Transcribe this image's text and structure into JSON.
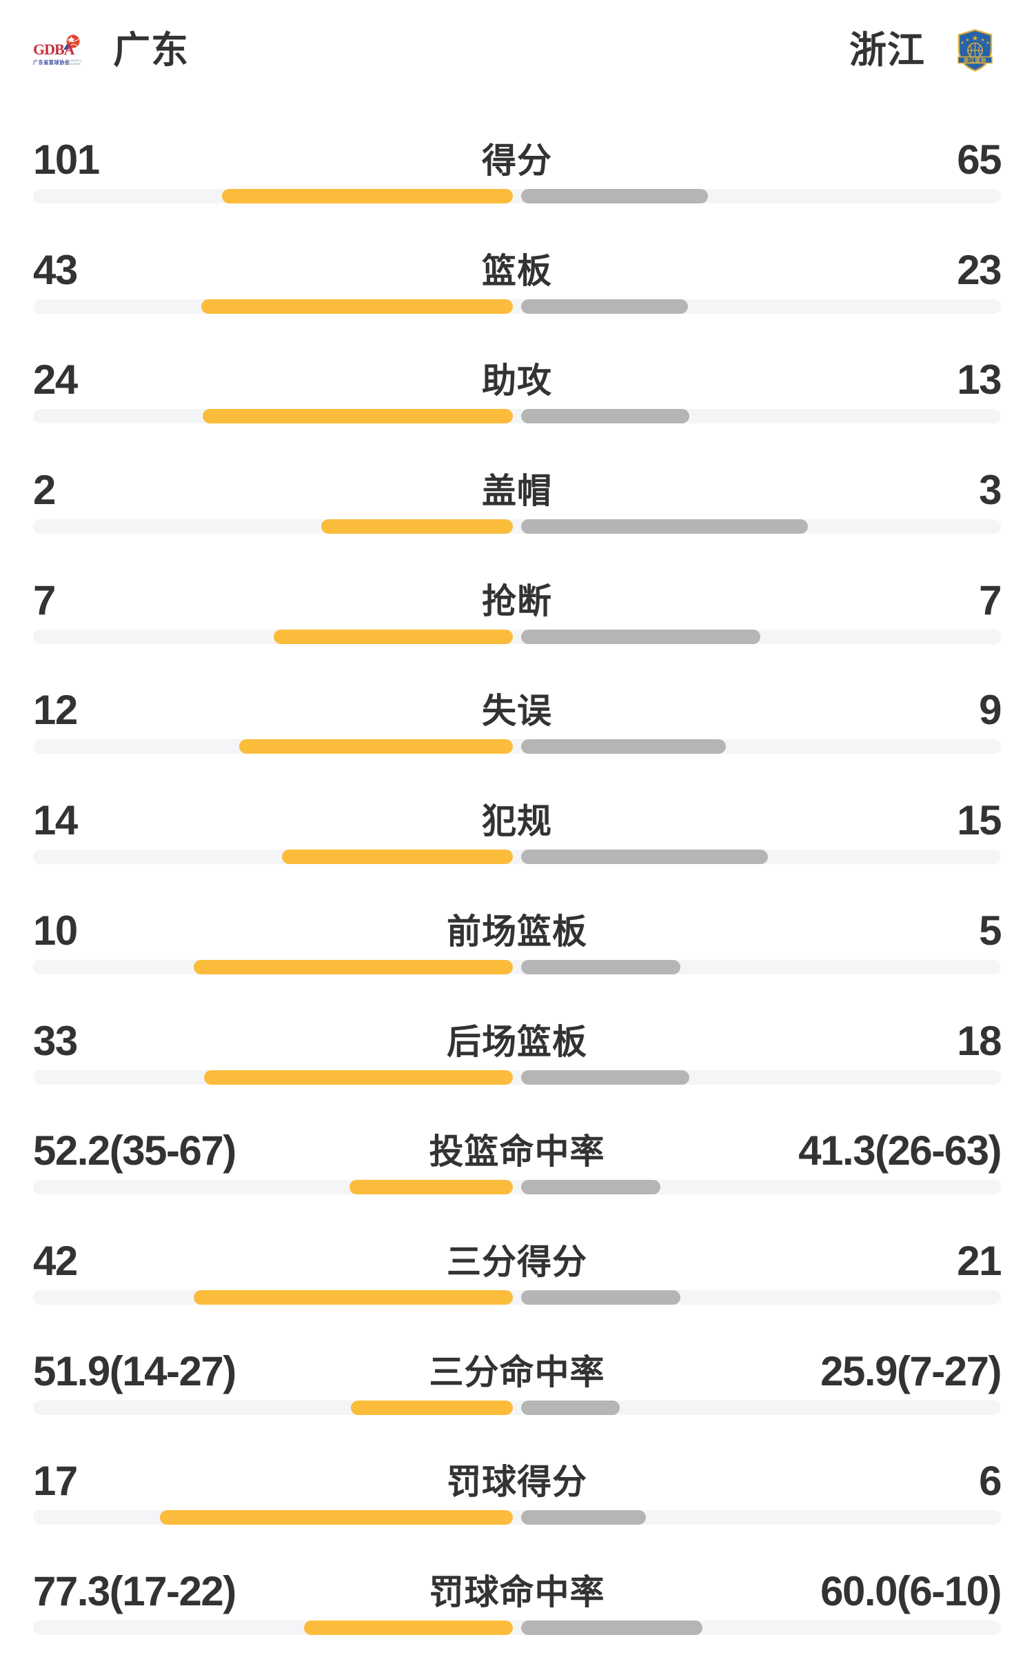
{
  "header": {
    "home": {
      "name": "广东"
    },
    "away": {
      "name": "浙江"
    },
    "home_logo": {
      "text": "GDBA",
      "subtext": "广东省篮球协会",
      "tiny_line1": "Guangdong",
      "tiny_line2": "Basketball"
    },
    "away_logo": {
      "banner_text": "浙江篮协"
    }
  },
  "colors": {
    "home_bar": "#FBBC3B",
    "away_bar": "#B5B5B5",
    "track": "#F4F5F7",
    "text": "#333333",
    "gdba_red": "#C5303E",
    "gdba_blue": "#3B4D9E",
    "zj_shield_blue": "#2763A6",
    "zj_gold": "#DFAE3F"
  },
  "chart_data": {
    "type": "bar",
    "subtype": "diverging-comparison",
    "legend": [
      "广东",
      "浙江"
    ],
    "legend_position": "top",
    "grid": false,
    "bar_scale_note": "bar widths are percent of half-track, growing outward from center",
    "rows": [
      {
        "label": "得分",
        "home": "101",
        "away": "65",
        "home_bar_pct": 60.7,
        "away_bar_pct": 39.0
      },
      {
        "label": "篮板",
        "home": "43",
        "away": "23",
        "home_bar_pct": 65.0,
        "away_bar_pct": 34.8
      },
      {
        "label": "助攻",
        "home": "24",
        "away": "13",
        "home_bar_pct": 64.7,
        "away_bar_pct": 35.0
      },
      {
        "label": "盖帽",
        "home": "2",
        "away": "3",
        "home_bar_pct": 39.9,
        "away_bar_pct": 59.8
      },
      {
        "label": "抢断",
        "home": "7",
        "away": "7",
        "home_bar_pct": 49.8,
        "away_bar_pct": 49.8
      },
      {
        "label": "失误",
        "home": "12",
        "away": "9",
        "home_bar_pct": 57.0,
        "away_bar_pct": 42.7
      },
      {
        "label": "犯规",
        "home": "14",
        "away": "15",
        "home_bar_pct": 48.1,
        "away_bar_pct": 51.5
      },
      {
        "label": "前场篮板",
        "home": "10",
        "away": "5",
        "home_bar_pct": 66.5,
        "away_bar_pct": 33.2
      },
      {
        "label": "后场篮板",
        "home": "33",
        "away": "18",
        "home_bar_pct": 64.4,
        "away_bar_pct": 35.1
      },
      {
        "label": "投篮命中率",
        "home": "52.2(35-67)",
        "away": "41.3(26-63)",
        "home_bar_pct": 34.0,
        "away_bar_pct": 29.0
      },
      {
        "label": "三分得分",
        "home": "42",
        "away": "21",
        "home_bar_pct": 66.5,
        "away_bar_pct": 33.2
      },
      {
        "label": "三分命中率",
        "home": "51.9(14-27)",
        "away": "25.9(7-27)",
        "home_bar_pct": 33.8,
        "away_bar_pct": 20.5
      },
      {
        "label": "罚球得分",
        "home": "17",
        "away": "6",
        "home_bar_pct": 73.6,
        "away_bar_pct": 26.0
      },
      {
        "label": "罚球命中率",
        "home": "77.3(17-22)",
        "away": "60.0(6-10)",
        "home_bar_pct": 43.5,
        "away_bar_pct": 37.8
      }
    ]
  }
}
